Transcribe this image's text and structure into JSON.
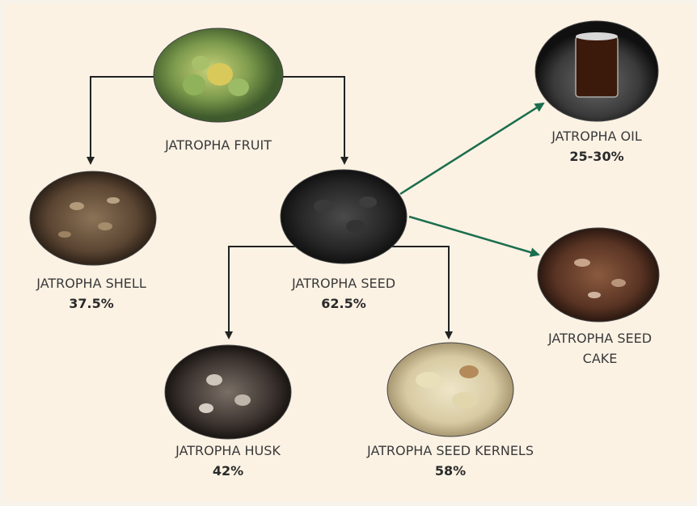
{
  "nodes": [
    {
      "label": "JATROPHA FRUIT"
    },
    {
      "label": "JATROPHA SHELL",
      "share": "37.5%"
    },
    {
      "label": "JATROPHA SEED",
      "share": "62.5%"
    },
    {
      "label": "JATROPHA HUSK",
      "share": "42%"
    },
    {
      "label": "JATROPHA SEED KERNELS",
      "share": "58%"
    },
    {
      "label": "JATROPHA OIL",
      "share": "25-30%"
    },
    {
      "label": "JATROPHA SEED CAKE"
    }
  ]
}
